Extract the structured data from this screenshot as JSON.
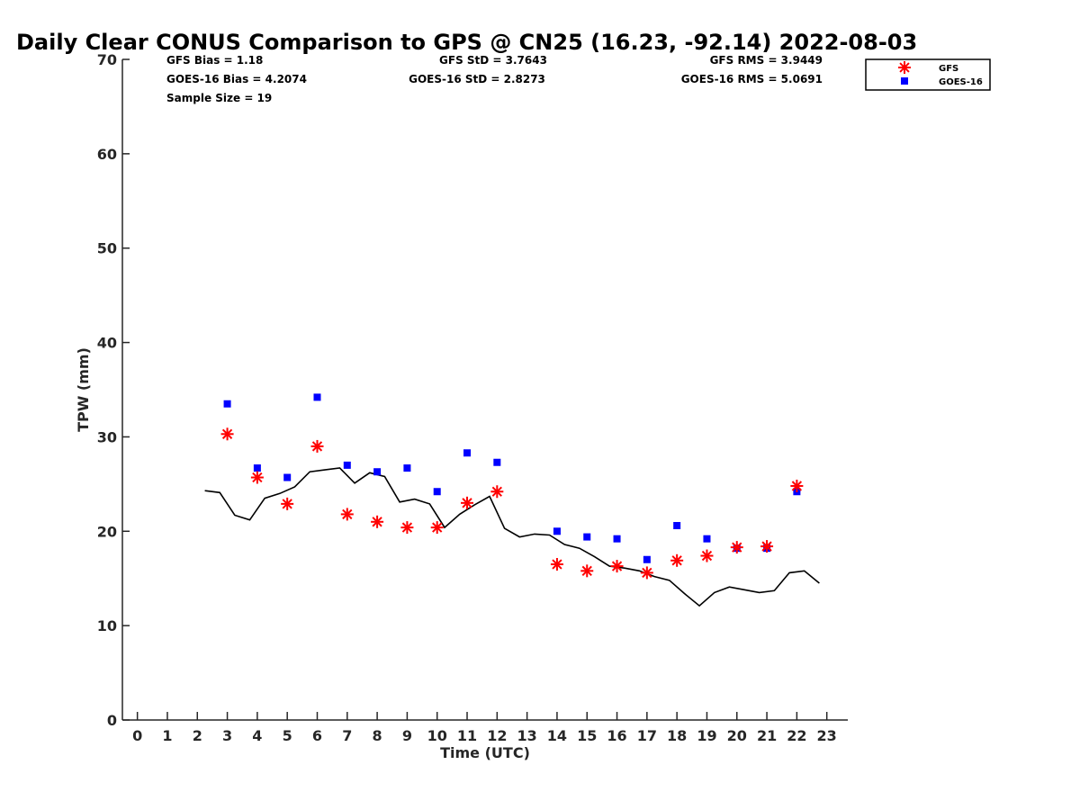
{
  "chart_data": {
    "type": "scatter",
    "title": "Daily Clear CONUS Comparison to GPS @ CN25 (16.23, -92.14) 2022-08-03",
    "xlabel": "Time (UTC)",
    "ylabel": "TPW (mm)",
    "xlim": [
      -0.5,
      23.7
    ],
    "ylim": [
      0,
      70
    ],
    "xticks": [
      0,
      1,
      2,
      3,
      4,
      5,
      6,
      7,
      8,
      9,
      10,
      11,
      12,
      13,
      14,
      15,
      16,
      17,
      18,
      19,
      20,
      21,
      22,
      23
    ],
    "yticks": [
      0,
      10,
      20,
      30,
      40,
      50,
      60,
      70
    ],
    "grid": false,
    "legend_position": "top-right",
    "stats": {
      "gfs_bias": "GFS Bias = 1.18",
      "goes_bias": "GOES-16 Bias = 4.2074",
      "sample_size": "Sample Size = 19",
      "gfs_std": "GFS StD = 3.7643",
      "goes_std": "GOES-16 StD = 2.8273",
      "gfs_rms": "GFS RMS = 3.9449",
      "goes_rms": "GOES-16 RMS = 5.0691"
    },
    "series": [
      {
        "name": "GFS",
        "marker": "asterisk",
        "color": "#ff0000",
        "x": [
          3,
          4,
          5,
          6,
          7,
          8,
          9,
          10,
          11,
          12,
          14,
          15,
          16,
          17,
          18,
          19,
          20,
          21,
          22
        ],
        "y": [
          30.3,
          25.7,
          22.9,
          29.0,
          21.8,
          21.0,
          20.4,
          20.4,
          23.0,
          24.2,
          16.5,
          15.8,
          16.3,
          15.6,
          16.9,
          17.4,
          18.3,
          18.4,
          24.8
        ]
      },
      {
        "name": "GOES-16",
        "marker": "square",
        "color": "#0000ff",
        "x": [
          3,
          4,
          5,
          6,
          7,
          8,
          9,
          10,
          11,
          12,
          14,
          15,
          16,
          17,
          18,
          19,
          20,
          21,
          22
        ],
        "y": [
          33.5,
          26.7,
          25.7,
          34.2,
          27.0,
          26.3,
          26.7,
          24.2,
          28.3,
          27.3,
          20.0,
          19.4,
          19.2,
          17.0,
          20.6,
          19.2,
          18.2,
          18.2,
          24.2
        ]
      },
      {
        "name": "GPS",
        "marker": "line",
        "color": "#000000",
        "x": [
          2.25,
          2.75,
          3.25,
          3.75,
          4.25,
          4.75,
          5.25,
          5.75,
          6.25,
          6.75,
          7.25,
          7.75,
          8.25,
          8.75,
          9.25,
          9.75,
          10.25,
          10.75,
          11.25,
          11.75,
          12.25,
          12.75,
          13.25,
          13.75,
          14.25,
          14.75,
          15.25,
          15.75,
          16.25,
          16.75,
          17.25,
          17.75,
          18.25,
          18.75,
          19.25,
          19.75,
          20.25,
          20.75,
          21.25,
          21.75,
          22.25,
          22.75
        ],
        "y": [
          24.3,
          24.1,
          21.7,
          21.2,
          23.5,
          24.0,
          24.7,
          26.3,
          26.5,
          26.7,
          25.1,
          26.2,
          25.8,
          23.1,
          23.4,
          22.9,
          20.4,
          21.8,
          22.8,
          23.7,
          20.3,
          19.4,
          19.7,
          19.6,
          18.6,
          18.2,
          17.3,
          16.3,
          16.1,
          15.8,
          15.2,
          14.8,
          13.4,
          12.1,
          13.5,
          14.1,
          13.8,
          13.5,
          13.7,
          15.6,
          15.8,
          14.5
        ]
      }
    ]
  }
}
